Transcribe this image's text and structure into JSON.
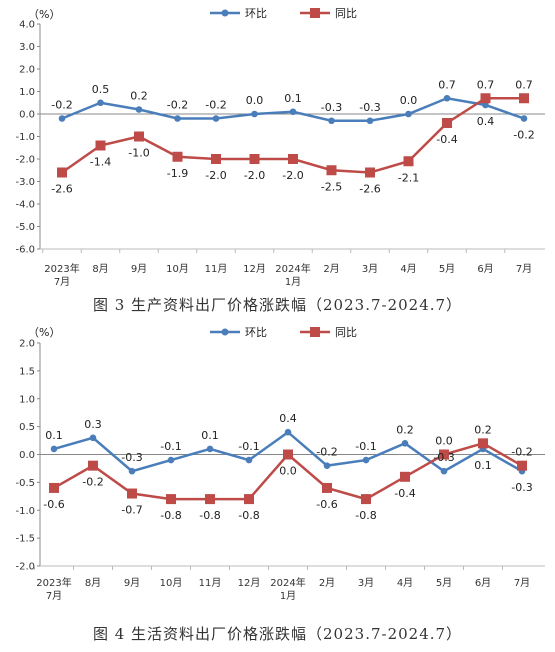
{
  "chart_data": [
    {
      "type": "line",
      "unit_label": "（%）",
      "categories": [
        [
          "2023年",
          "7月"
        ],
        [
          "8月"
        ],
        [
          "9月"
        ],
        [
          "10月"
        ],
        [
          "11月"
        ],
        [
          "12月"
        ],
        [
          "2024年",
          "1月"
        ],
        [
          "2月"
        ],
        [
          "3月"
        ],
        [
          "4月"
        ],
        [
          "5月"
        ],
        [
          "6月"
        ],
        [
          "7月"
        ]
      ],
      "ylim": [
        -6.0,
        4.0
      ],
      "yticks": [
        "4.0",
        "3.0",
        "2.0",
        "1.0",
        "0.0",
        "-1.0",
        "-2.0",
        "-3.0",
        "-4.0",
        "-5.0",
        "-6.0"
      ],
      "series": [
        {
          "name": "环比",
          "color": "#4a7ebb",
          "marker": "circle",
          "values": [
            -0.2,
            0.5,
            0.2,
            -0.2,
            -0.2,
            0.0,
            0.1,
            -0.3,
            -0.3,
            0.0,
            0.7,
            0.4,
            -0.2
          ],
          "labels": [
            "-0.2",
            "0.5",
            "0.2",
            "-0.2",
            "-0.2",
            "0.0",
            "0.1",
            "-0.3",
            "-0.3",
            "0.0",
            "0.7",
            "0.4",
            "-0.2"
          ]
        },
        {
          "name": "同比",
          "color": "#be4b48",
          "marker": "square",
          "values": [
            -2.6,
            -1.4,
            -1.0,
            -1.9,
            -2.0,
            -2.0,
            -2.0,
            -2.5,
            -2.6,
            -2.1,
            -0.4,
            0.7,
            0.7
          ],
          "labels": [
            "-2.6",
            "-1.4",
            "-1.0",
            "-1.9",
            "-2.0",
            "-2.0",
            "-2.0",
            "-2.5",
            "-2.6",
            "-2.1",
            "-0.4",
            "0.7",
            "0.7"
          ]
        }
      ],
      "caption": "图 3  生产资料出厂价格涨跌幅（2023.7-2024.7）",
      "legend": "top-center",
      "grid": false
    },
    {
      "type": "line",
      "unit_label": "（%）",
      "categories": [
        [
          "2023年",
          "7月"
        ],
        [
          "8月"
        ],
        [
          "9月"
        ],
        [
          "10月"
        ],
        [
          "11月"
        ],
        [
          "12月"
        ],
        [
          "2024年",
          "1月"
        ],
        [
          "2月"
        ],
        [
          "3月"
        ],
        [
          "4月"
        ],
        [
          "5月"
        ],
        [
          "6月"
        ],
        [
          "7月"
        ]
      ],
      "ylim": [
        -2.0,
        2.0
      ],
      "yticks": [
        "2.0",
        "1.5",
        "1.0",
        "0.5",
        "0.0",
        "-0.5",
        "-1.0",
        "-1.5",
        "-2.0"
      ],
      "series": [
        {
          "name": "环比",
          "color": "#4a7ebb",
          "marker": "circle",
          "values": [
            0.1,
            0.3,
            -0.3,
            -0.1,
            0.1,
            -0.1,
            0.4,
            -0.2,
            -0.1,
            0.2,
            -0.3,
            0.1,
            -0.3
          ],
          "labels": [
            "0.1",
            "0.3",
            "-0.3",
            "-0.1",
            "0.1",
            "-0.1",
            "0.4",
            "-0.2",
            "-0.1",
            "0.2",
            "-0.3",
            "0.1",
            "-0.3"
          ]
        },
        {
          "name": "同比",
          "color": "#be4b48",
          "marker": "square",
          "values": [
            -0.6,
            -0.2,
            -0.7,
            -0.8,
            -0.8,
            -0.8,
            0.0,
            -0.6,
            -0.8,
            -0.4,
            0.0,
            0.2,
            -0.2
          ],
          "labels": [
            "-0.6",
            "-0.2",
            "-0.7",
            "-0.8",
            "-0.8",
            "-0.8",
            "0.0",
            "-0.6",
            "-0.8",
            "-0.4",
            "0.0",
            "0.2",
            "-0.2"
          ]
        }
      ],
      "caption": "图 4  生活资料出厂价格涨跌幅（2023.7-2024.7）",
      "legend": "top-center",
      "grid": false
    }
  ]
}
